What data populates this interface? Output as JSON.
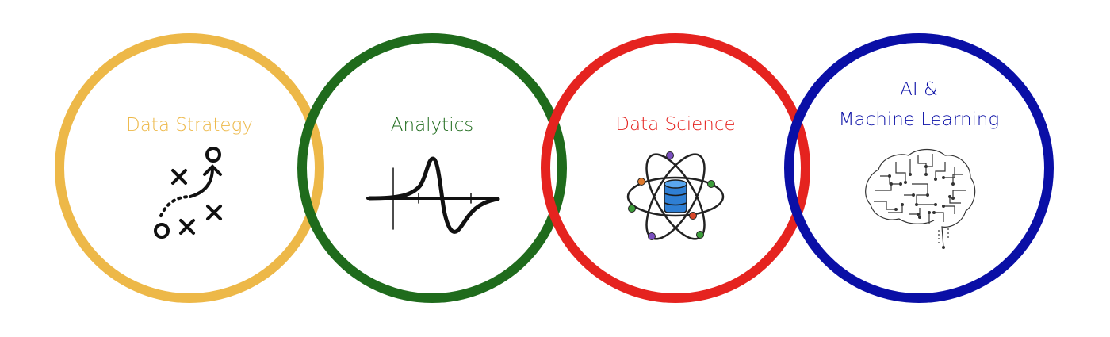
{
  "rings": [
    {
      "id": "data-strategy",
      "label_lines": [
        "Data Strategy"
      ],
      "color": "#EDB848",
      "icon": "strategy-play-icon"
    },
    {
      "id": "analytics",
      "label_lines": [
        "Analytics"
      ],
      "color": "#1F6B1C",
      "icon": "signal-waveform-icon"
    },
    {
      "id": "data-science",
      "label_lines": [
        "Data Science"
      ],
      "color": "#E5231F",
      "icon": "atom-database-icon"
    },
    {
      "id": "ai-ml",
      "label_lines": [
        "AI &",
        "Machine Learning"
      ],
      "color": "#0A0FA6",
      "icon": "circuit-brain-icon"
    }
  ]
}
